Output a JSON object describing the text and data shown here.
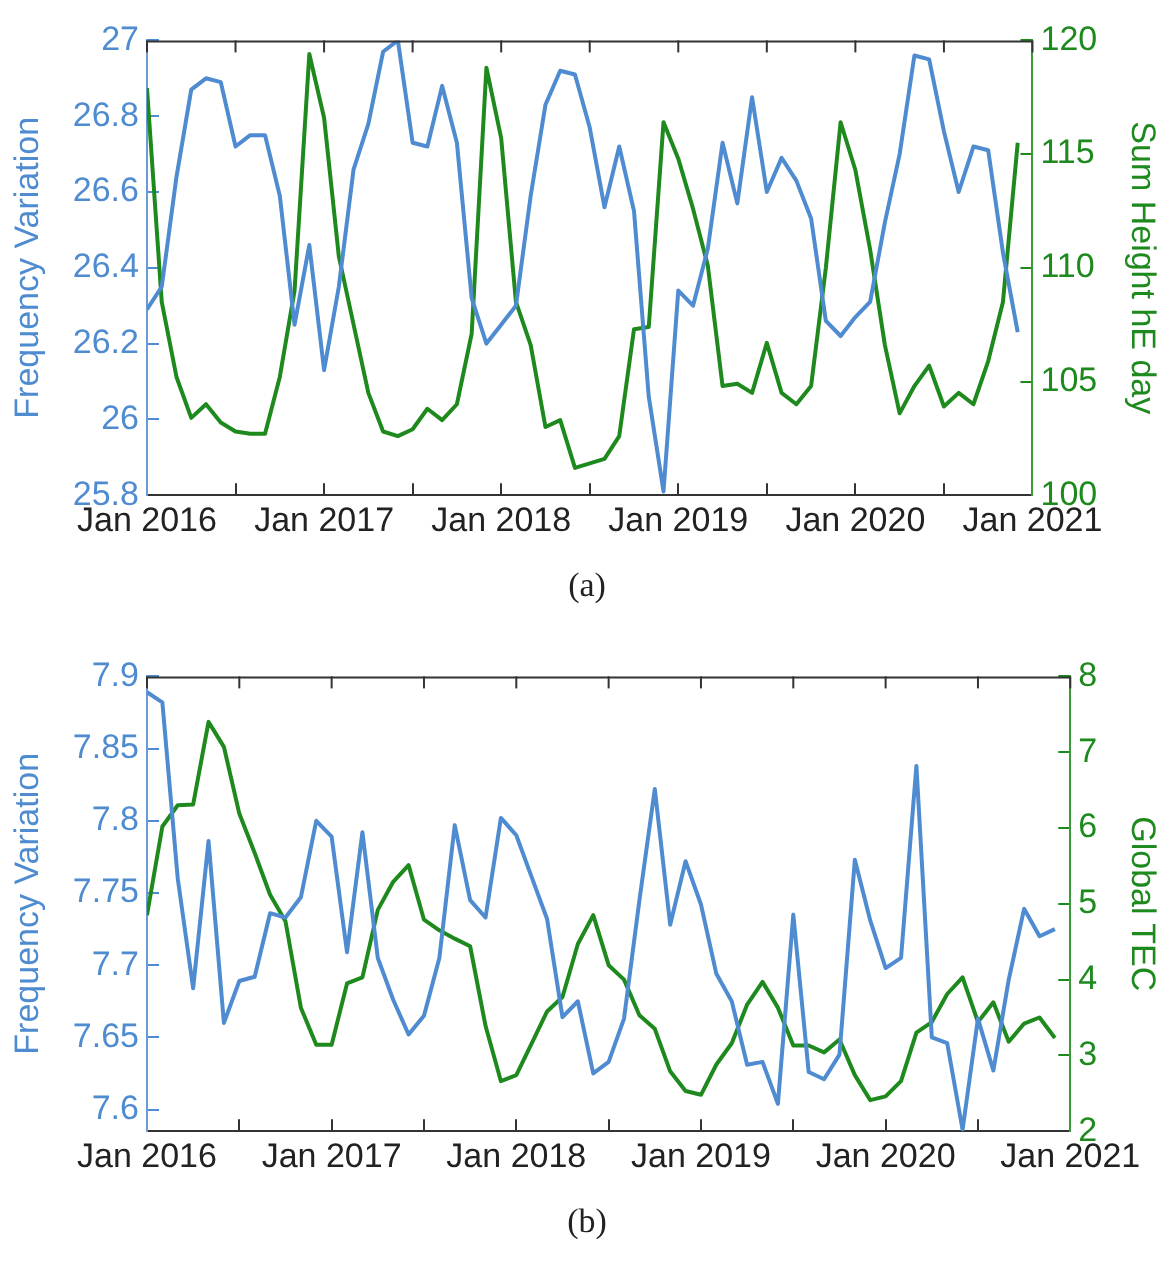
{
  "chart_data": [
    {
      "type": "line",
      "annotations": [
        "(a)"
      ],
      "ylabel": "Frequency Variation",
      "y2label": "Sum Height hE day",
      "x": [
        "2016-01",
        "2016-02",
        "2016-03",
        "2016-04",
        "2016-05",
        "2016-06",
        "2016-07",
        "2016-08",
        "2016-09",
        "2016-10",
        "2016-11",
        "2016-12",
        "2017-01",
        "2017-02",
        "2017-03",
        "2017-04",
        "2017-05",
        "2017-06",
        "2017-07",
        "2017-08",
        "2017-09",
        "2017-10",
        "2017-11",
        "2017-12",
        "2018-01",
        "2018-02",
        "2018-03",
        "2018-04",
        "2018-05",
        "2018-06",
        "2018-07",
        "2018-08",
        "2018-09",
        "2018-10",
        "2018-11",
        "2018-12",
        "2019-01",
        "2019-02",
        "2019-03",
        "2019-04",
        "2019-05",
        "2019-06",
        "2019-07",
        "2019-08",
        "2019-09",
        "2019-10",
        "2019-11",
        "2019-12",
        "2020-01",
        "2020-02",
        "2020-03",
        "2020-04",
        "2020-05",
        "2020-06",
        "2020-07",
        "2020-08",
        "2020-09",
        "2020-10",
        "2020-11",
        "2020-12"
      ],
      "series": [
        {
          "color": "#4f8bd0",
          "axis": "y",
          "values": [
            26.29,
            26.35,
            26.64,
            26.87,
            26.9,
            26.89,
            26.72,
            26.75,
            26.75,
            26.59,
            26.25,
            26.46,
            26.13,
            26.35,
            26.66,
            26.78,
            26.97,
            27.0,
            26.73,
            26.72,
            26.88,
            26.73,
            26.32,
            26.2,
            26.25,
            26.3,
            26.59,
            26.83,
            26.92,
            26.91,
            26.77,
            26.56,
            26.72,
            26.55,
            26.06,
            25.81,
            26.34,
            26.3,
            26.45,
            26.73,
            26.57,
            26.85,
            26.6,
            26.69,
            26.63,
            26.53,
            26.26,
            26.22,
            26.27,
            26.31,
            26.52,
            26.7,
            26.96,
            26.95,
            26.76,
            26.6,
            26.72,
            26.71,
            26.44,
            26.23
          ]
        },
        {
          "color": "#1e8a1e",
          "axis": "y2",
          "values": [
            117.9,
            108.5,
            105.2,
            103.4,
            104.0,
            103.2,
            102.8,
            102.7,
            102.7,
            105.2,
            109,
            119.4,
            116.6,
            110.5,
            107.5,
            104.5,
            102.8,
            102.6,
            102.9,
            103.8,
            103.3,
            104.0,
            107.1,
            118.8,
            115.7,
            108.5,
            106.6,
            103.0,
            103.3,
            101.2,
            101.4,
            101.6,
            102.6,
            107.3,
            107.4,
            116.4,
            114.8,
            112.6,
            110.1,
            104.8,
            104.9,
            104.5,
            106.7,
            104.5,
            104.0,
            104.8,
            110,
            116.4,
            114.3,
            110.8,
            106.6,
            103.6,
            104.8,
            105.7,
            103.9,
            104.5,
            104.0,
            105.9,
            108.5,
            115.5
          ]
        }
      ],
      "xlim": [
        "2016-01",
        "2021-01"
      ],
      "xticks": [
        {
          "value": "2016-01",
          "label": "Jan 2016"
        },
        {
          "value": "2016-07",
          "label": null
        },
        {
          "value": "2017-01",
          "label": "Jan 2017"
        },
        {
          "value": "2017-07",
          "label": null
        },
        {
          "value": "2018-01",
          "label": "Jan 2018"
        },
        {
          "value": "2018-07",
          "label": null
        },
        {
          "value": "2019-01",
          "label": "Jan 2019"
        },
        {
          "value": "2019-07",
          "label": null
        },
        {
          "value": "2020-01",
          "label": "Jan 2020"
        },
        {
          "value": "2020-07",
          "label": null
        },
        {
          "value": "2021-01",
          "label": "Jan 2021"
        }
      ],
      "ylim": [
        25.8,
        27
      ],
      "yticks": [
        25.8,
        26,
        26.2,
        26.4,
        26.6,
        26.8,
        27
      ],
      "y2lim": [
        100,
        120
      ],
      "y2ticks": [
        100,
        105,
        110,
        115,
        120
      ],
      "legend": false,
      "line_style": "solid",
      "marker": "none"
    },
    {
      "type": "line",
      "annotations": [
        "(b)"
      ],
      "ylabel": "Frequency Variation",
      "y2label": "Global TEC",
      "x": [
        "2016-01",
        "2016-02",
        "2016-03",
        "2016-04",
        "2016-05",
        "2016-06",
        "2016-07",
        "2016-08",
        "2016-09",
        "2016-10",
        "2016-11",
        "2016-12",
        "2017-01",
        "2017-02",
        "2017-03",
        "2017-04",
        "2017-05",
        "2017-06",
        "2017-07",
        "2017-08",
        "2017-09",
        "2017-10",
        "2017-11",
        "2017-12",
        "2018-01",
        "2018-02",
        "2018-03",
        "2018-04",
        "2018-05",
        "2018-06",
        "2018-07",
        "2018-08",
        "2018-09",
        "2018-10",
        "2018-11",
        "2018-12",
        "2019-01",
        "2019-02",
        "2019-03",
        "2019-04",
        "2019-05",
        "2019-06",
        "2019-07",
        "2019-08",
        "2019-09",
        "2019-10",
        "2019-11",
        "2019-12",
        "2020-01",
        "2020-02",
        "2020-03",
        "2020-04",
        "2020-05",
        "2020-06",
        "2020-07",
        "2020-08",
        "2020-09",
        "2020-10",
        "2020-11",
        "2020-12"
      ],
      "series": [
        {
          "color": "#4f8bd0",
          "axis": "y",
          "values": [
            7.889,
            7.882,
            7.76,
            7.684,
            7.786,
            7.66,
            7.689,
            7.692,
            7.736,
            7.733,
            7.747,
            7.8,
            7.789,
            7.709,
            7.792,
            7.705,
            7.676,
            7.652,
            7.665,
            7.705,
            7.797,
            7.745,
            7.733,
            7.802,
            7.79,
            7.761,
            7.732,
            7.664,
            7.675,
            7.625,
            7.633,
            7.663,
            7.745,
            7.822,
            7.728,
            7.772,
            7.742,
            7.694,
            7.675,
            7.631,
            7.633,
            7.604,
            7.735,
            7.626,
            7.621,
            7.638,
            7.773,
            7.731,
            7.698,
            7.705,
            7.838,
            7.65,
            7.646,
            7.586,
            7.663,
            7.627,
            7.69,
            7.739,
            7.72,
            7.725
          ]
        },
        {
          "color": "#1e8a1e",
          "axis": "y2",
          "values": [
            4.85,
            6.02,
            6.3,
            6.31,
            7.4,
            7.07,
            6.19,
            5.67,
            5.12,
            4.77,
            3.63,
            3.14,
            3.14,
            3.95,
            4.03,
            4.92,
            5.29,
            5.51,
            4.79,
            4.65,
            4.54,
            4.44,
            3.39,
            2.66,
            2.74,
            3.16,
            3.58,
            3.77,
            4.47,
            4.85,
            4.19,
            4.0,
            3.53,
            3.35,
            2.79,
            2.53,
            2.48,
            2.88,
            3.16,
            3.67,
            3.97,
            3.63,
            3.13,
            3.13,
            3.04,
            3.21,
            2.74,
            2.41,
            2.46,
            2.66,
            3.3,
            3.44,
            3.81,
            4.03,
            3.44,
            3.7,
            3.18,
            3.42,
            3.5,
            3.23
          ]
        }
      ],
      "xlim": [
        "2016-01",
        "2021-01"
      ],
      "xticks": [
        {
          "value": "2016-01",
          "label": "Jan 2016"
        },
        {
          "value": "2016-07",
          "label": null
        },
        {
          "value": "2017-01",
          "label": "Jan 2017"
        },
        {
          "value": "2017-07",
          "label": null
        },
        {
          "value": "2018-01",
          "label": "Jan 2018"
        },
        {
          "value": "2018-07",
          "label": null
        },
        {
          "value": "2019-01",
          "label": "Jan 2019"
        },
        {
          "value": "2019-07",
          "label": null
        },
        {
          "value": "2020-01",
          "label": "Jan 2020"
        },
        {
          "value": "2020-07",
          "label": null
        },
        {
          "value": "2021-01",
          "label": "Jan 2021"
        }
      ],
      "ylim": [
        7.585,
        7.9
      ],
      "yticks": [
        7.6,
        7.65,
        7.7,
        7.75,
        7.8,
        7.85,
        7.9
      ],
      "y2lim": [
        2,
        8
      ],
      "y2ticks": [
        2,
        3,
        4,
        5,
        6,
        7,
        8
      ],
      "legend": false,
      "line_style": "solid",
      "marker": "none"
    }
  ]
}
